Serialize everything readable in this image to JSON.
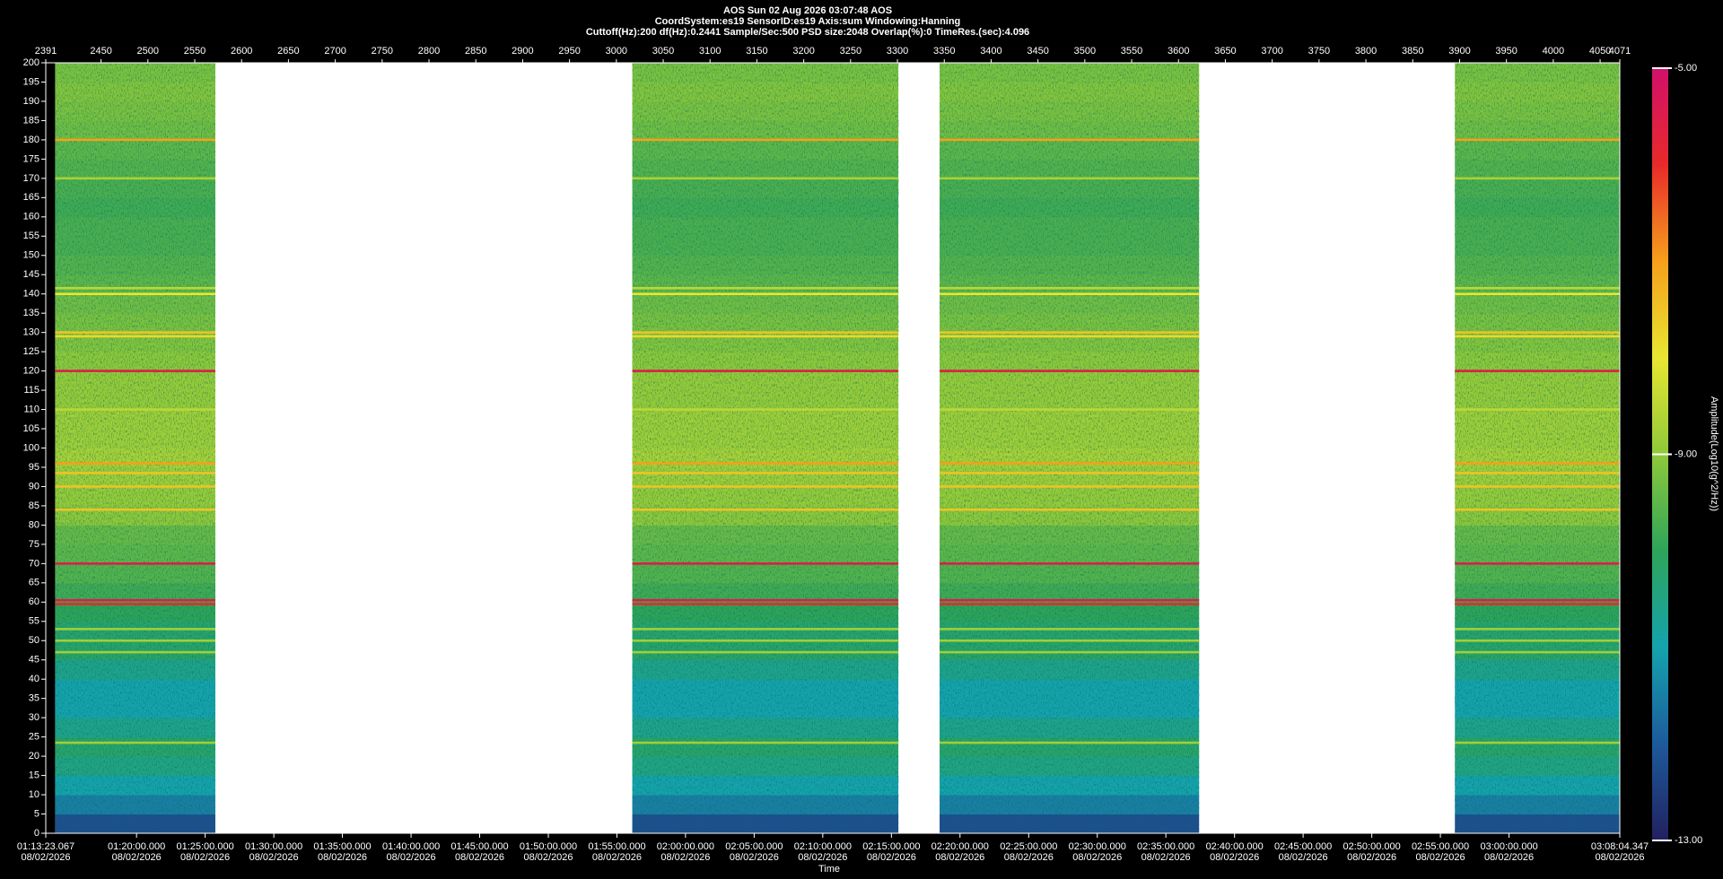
{
  "chart_data": {
    "type": "spectrogram",
    "header": [
      "AOS  Sun 02 Aug 2026 03:07:48  AOS",
      "CoordSystem:es19    SensorID:es19     Axis:sum     Windowing:Hanning",
      "Cuttoff(Hz):200      df(Hz):0.2441      Sample/Sec:500      PSD size:2048      Overlap(%):0      TimeRes.(sec):4.096"
    ],
    "x_label": "Time",
    "colorbar_label": "Amplitude(Log10(g^2/Hz))",
    "xlim": [
      2391,
      4071
    ],
    "xticks": [
      2391,
      2450,
      2500,
      2550,
      2600,
      2650,
      2700,
      2750,
      2800,
      2850,
      2900,
      2950,
      3000,
      3050,
      3100,
      3150,
      3200,
      3250,
      3300,
      3350,
      3400,
      3450,
      3500,
      3550,
      3600,
      3650,
      3700,
      3750,
      3800,
      3850,
      3900,
      3950,
      4000,
      4050,
      4071
    ],
    "time_ticks": [
      {
        "value": 2391,
        "label": "01:13:23.067"
      },
      {
        "value": 2487.9,
        "label": "01:20:00.000"
      },
      {
        "value": 2561.1,
        "label": "01:25:00.000"
      },
      {
        "value": 2634.4,
        "label": "01:30:00.000"
      },
      {
        "value": 2707.6,
        "label": "01:35:00.000"
      },
      {
        "value": 2780.9,
        "label": "01:40:00.000"
      },
      {
        "value": 2854.1,
        "label": "01:45:00.000"
      },
      {
        "value": 2927.4,
        "label": "01:50:00.000"
      },
      {
        "value": 3000.6,
        "label": "01:55:00.000"
      },
      {
        "value": 3073.8,
        "label": "02:00:00.000"
      },
      {
        "value": 3147.1,
        "label": "02:05:00.000"
      },
      {
        "value": 3220.3,
        "label": "02:10:00.000"
      },
      {
        "value": 3293.6,
        "label": "02:15:00.000"
      },
      {
        "value": 3366.8,
        "label": "02:20:00.000"
      },
      {
        "value": 3440.1,
        "label": "02:25:00.000"
      },
      {
        "value": 3513.3,
        "label": "02:30:00.000"
      },
      {
        "value": 3586.5,
        "label": "02:35:00.000"
      },
      {
        "value": 3659.8,
        "label": "02:40:00.000"
      },
      {
        "value": 3733.0,
        "label": "02:45:00.000"
      },
      {
        "value": 3806.3,
        "label": "02:50:00.000"
      },
      {
        "value": 3879.5,
        "label": "02:55:00.000"
      },
      {
        "value": 3952.8,
        "label": "03:00:00.000"
      },
      {
        "value": 4071,
        "label": "03:08:04.347"
      }
    ],
    "date_label": "08/02/2026",
    "ylim": [
      0,
      200
    ],
    "yticks": [
      0,
      5,
      10,
      15,
      20,
      25,
      30,
      35,
      40,
      45,
      50,
      55,
      60,
      65,
      70,
      75,
      80,
      85,
      90,
      95,
      100,
      105,
      110,
      115,
      120,
      125,
      130,
      135,
      140,
      145,
      150,
      155,
      160,
      165,
      170,
      175,
      180,
      185,
      190,
      195,
      200
    ],
    "segments": [
      [
        2401,
        2572
      ],
      [
        3017,
        3301
      ],
      [
        3345,
        3622
      ],
      [
        3895,
        4071
      ]
    ],
    "freq_bins": [
      0,
      5,
      10,
      15,
      20,
      25,
      30,
      35,
      40,
      45,
      50,
      55,
      60,
      65,
      70,
      75,
      80,
      85,
      90,
      95,
      100,
      105,
      110,
      115,
      120,
      125,
      130,
      135,
      140,
      145,
      150,
      155,
      160,
      165,
      170,
      175,
      180,
      185,
      190,
      195,
      200
    ],
    "amplitudes": [
      -12.2,
      -11.5,
      -11.0,
      -10.5,
      -10.2,
      -10.6,
      -11.0,
      -11.0,
      -10.6,
      -10.2,
      -10.2,
      -10.0,
      -9.8,
      -9.6,
      -9.5,
      -9.4,
      -9.0,
      -8.9,
      -8.8,
      -8.7,
      -8.8,
      -8.8,
      -8.9,
      -8.9,
      -9.0,
      -9.1,
      -9.2,
      -9.3,
      -9.5,
      -9.6,
      -9.7,
      -9.7,
      -9.8,
      -9.7,
      -9.6,
      -9.5,
      -9.3,
      -9.2,
      -9.1,
      -9.2
    ],
    "lines": [
      {
        "freq": 180,
        "amplitude": -7
      },
      {
        "freq": 170,
        "amplitude": -8.7
      },
      {
        "freq": 141.5,
        "amplitude": -8.5
      },
      {
        "freq": 140,
        "amplitude": -8
      },
      {
        "freq": 130,
        "amplitude": -7.5
      },
      {
        "freq": 129,
        "amplitude": -7.8
      },
      {
        "freq": 120,
        "amplitude": -5.5
      },
      {
        "freq": 110,
        "amplitude": -8.5
      },
      {
        "freq": 96,
        "amplitude": -7
      },
      {
        "freq": 93.5,
        "amplitude": -7.5
      },
      {
        "freq": 90,
        "amplitude": -7.5
      },
      {
        "freq": 84,
        "amplitude": -7.5
      },
      {
        "freq": 70,
        "amplitude": -5.5
      },
      {
        "freq": 60.5,
        "amplitude": -5.5
      },
      {
        "freq": 59.5,
        "amplitude": -6
      },
      {
        "freq": 53,
        "amplitude": -8.8
      },
      {
        "freq": 50,
        "amplitude": -8.8
      },
      {
        "freq": 47,
        "amplitude": -8.8
      },
      {
        "freq": 23.5,
        "amplitude": -8.8
      }
    ],
    "clim": [
      -13,
      -5
    ],
    "cticks": [
      {
        "value": -5,
        "label": "-5.00"
      },
      {
        "value": -9,
        "label": "-9.00"
      },
      {
        "value": -13,
        "label": "-13.00"
      }
    ],
    "colormap": [
      "#22205e",
      "#1d5a9c",
      "#15a3ad",
      "#2ea45a",
      "#8ec93a",
      "#e8e631",
      "#f6a01c",
      "#e82a2a",
      "#d0106a"
    ]
  }
}
